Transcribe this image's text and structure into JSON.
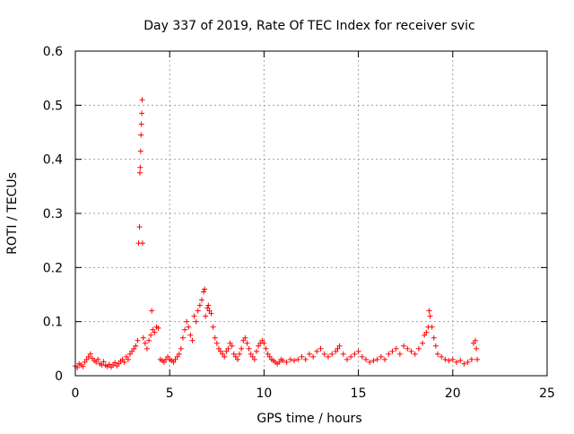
{
  "chart_data": {
    "type": "scatter",
    "title": "Day 337 of 2019, Rate Of TEC Index for receiver svic",
    "xlabel": "GPS time / hours",
    "ylabel": "ROTI / TECUs",
    "xlim": [
      0,
      25
    ],
    "ylim": [
      0,
      0.6
    ],
    "xticks": [
      "0",
      "5",
      "10",
      "15",
      "20",
      "25"
    ],
    "xtick_values": [
      0,
      5,
      10,
      15,
      20,
      25
    ],
    "yticks": [
      "0",
      "0.1",
      "0.2",
      "0.3",
      "0.4",
      "0.5",
      "0.6"
    ],
    "ytick_values": [
      0,
      0.1,
      0.2,
      0.3,
      0.4,
      0.5,
      0.6
    ],
    "grid": true,
    "marker": "+",
    "series": [
      {
        "name": "ROTI",
        "color": "#ff0000",
        "points": [
          [
            0.0,
            0.018
          ],
          [
            0.1,
            0.015
          ],
          [
            0.2,
            0.022
          ],
          [
            0.3,
            0.02
          ],
          [
            0.4,
            0.017
          ],
          [
            0.5,
            0.025
          ],
          [
            0.6,
            0.03
          ],
          [
            0.7,
            0.035
          ],
          [
            0.8,
            0.04
          ],
          [
            0.9,
            0.032
          ],
          [
            1.0,
            0.028
          ],
          [
            1.1,
            0.025
          ],
          [
            1.2,
            0.03
          ],
          [
            1.3,
            0.022
          ],
          [
            1.4,
            0.02
          ],
          [
            1.5,
            0.026
          ],
          [
            1.6,
            0.019
          ],
          [
            1.7,
            0.017
          ],
          [
            1.8,
            0.021
          ],
          [
            1.9,
            0.016
          ],
          [
            2.0,
            0.02
          ],
          [
            2.1,
            0.024
          ],
          [
            2.2,
            0.018
          ],
          [
            2.3,
            0.022
          ],
          [
            2.4,
            0.027
          ],
          [
            2.5,
            0.03
          ],
          [
            2.6,
            0.025
          ],
          [
            2.7,
            0.035
          ],
          [
            2.8,
            0.03
          ],
          [
            2.9,
            0.04
          ],
          [
            3.0,
            0.045
          ],
          [
            3.1,
            0.05
          ],
          [
            3.2,
            0.055
          ],
          [
            3.3,
            0.065
          ],
          [
            3.35,
            0.245
          ],
          [
            3.4,
            0.275
          ],
          [
            3.42,
            0.375
          ],
          [
            3.44,
            0.385
          ],
          [
            3.46,
            0.415
          ],
          [
            3.48,
            0.445
          ],
          [
            3.5,
            0.465
          ],
          [
            3.52,
            0.485
          ],
          [
            3.54,
            0.51
          ],
          [
            3.56,
            0.245
          ],
          [
            3.6,
            0.07
          ],
          [
            3.7,
            0.06
          ],
          [
            3.8,
            0.05
          ],
          [
            3.9,
            0.065
          ],
          [
            4.0,
            0.075
          ],
          [
            4.05,
            0.12
          ],
          [
            4.1,
            0.085
          ],
          [
            4.2,
            0.08
          ],
          [
            4.3,
            0.09
          ],
          [
            4.4,
            0.088
          ],
          [
            4.5,
            0.03
          ],
          [
            4.6,
            0.028
          ],
          [
            4.7,
            0.025
          ],
          [
            4.8,
            0.03
          ],
          [
            4.9,
            0.035
          ],
          [
            5.0,
            0.03
          ],
          [
            5.1,
            0.028
          ],
          [
            5.2,
            0.025
          ],
          [
            5.3,
            0.03
          ],
          [
            5.4,
            0.035
          ],
          [
            5.5,
            0.04
          ],
          [
            5.6,
            0.05
          ],
          [
            5.7,
            0.07
          ],
          [
            5.8,
            0.085
          ],
          [
            5.9,
            0.1
          ],
          [
            6.0,
            0.09
          ],
          [
            6.1,
            0.075
          ],
          [
            6.2,
            0.065
          ],
          [
            6.3,
            0.11
          ],
          [
            6.4,
            0.1
          ],
          [
            6.5,
            0.12
          ],
          [
            6.6,
            0.13
          ],
          [
            6.7,
            0.14
          ],
          [
            6.8,
            0.155
          ],
          [
            6.85,
            0.16
          ],
          [
            6.9,
            0.11
          ],
          [
            7.0,
            0.125
          ],
          [
            7.05,
            0.13
          ],
          [
            7.1,
            0.12
          ],
          [
            7.2,
            0.115
          ],
          [
            7.3,
            0.09
          ],
          [
            7.4,
            0.07
          ],
          [
            7.5,
            0.06
          ],
          [
            7.6,
            0.05
          ],
          [
            7.7,
            0.045
          ],
          [
            7.8,
            0.04
          ],
          [
            7.9,
            0.035
          ],
          [
            8.0,
            0.045
          ],
          [
            8.1,
            0.05
          ],
          [
            8.2,
            0.06
          ],
          [
            8.3,
            0.055
          ],
          [
            8.4,
            0.04
          ],
          [
            8.5,
            0.035
          ],
          [
            8.6,
            0.03
          ],
          [
            8.7,
            0.04
          ],
          [
            8.8,
            0.05
          ],
          [
            8.9,
            0.065
          ],
          [
            9.0,
            0.07
          ],
          [
            9.1,
            0.06
          ],
          [
            9.2,
            0.05
          ],
          [
            9.3,
            0.04
          ],
          [
            9.4,
            0.035
          ],
          [
            9.5,
            0.03
          ],
          [
            9.6,
            0.045
          ],
          [
            9.7,
            0.055
          ],
          [
            9.8,
            0.06
          ],
          [
            9.9,
            0.065
          ],
          [
            10.0,
            0.06
          ],
          [
            10.1,
            0.05
          ],
          [
            10.2,
            0.04
          ],
          [
            10.3,
            0.035
          ],
          [
            10.4,
            0.03
          ],
          [
            10.5,
            0.028
          ],
          [
            10.6,
            0.025
          ],
          [
            10.7,
            0.022
          ],
          [
            10.8,
            0.025
          ],
          [
            10.9,
            0.03
          ],
          [
            11.0,
            0.028
          ],
          [
            11.2,
            0.025
          ],
          [
            11.4,
            0.03
          ],
          [
            11.6,
            0.028
          ],
          [
            11.8,
            0.03
          ],
          [
            12.0,
            0.035
          ],
          [
            12.2,
            0.03
          ],
          [
            12.4,
            0.04
          ],
          [
            12.6,
            0.035
          ],
          [
            12.8,
            0.045
          ],
          [
            13.0,
            0.05
          ],
          [
            13.2,
            0.04
          ],
          [
            13.4,
            0.035
          ],
          [
            13.6,
            0.04
          ],
          [
            13.8,
            0.045
          ],
          [
            13.9,
            0.05
          ],
          [
            14.0,
            0.055
          ],
          [
            14.2,
            0.04
          ],
          [
            14.4,
            0.03
          ],
          [
            14.6,
            0.035
          ],
          [
            14.8,
            0.04
          ],
          [
            15.0,
            0.045
          ],
          [
            15.2,
            0.035
          ],
          [
            15.4,
            0.03
          ],
          [
            15.6,
            0.025
          ],
          [
            15.8,
            0.028
          ],
          [
            16.0,
            0.03
          ],
          [
            16.2,
            0.035
          ],
          [
            16.4,
            0.03
          ],
          [
            16.6,
            0.04
          ],
          [
            16.8,
            0.045
          ],
          [
            17.0,
            0.05
          ],
          [
            17.2,
            0.04
          ],
          [
            17.4,
            0.055
          ],
          [
            17.6,
            0.05
          ],
          [
            17.8,
            0.045
          ],
          [
            18.0,
            0.04
          ],
          [
            18.2,
            0.05
          ],
          [
            18.4,
            0.06
          ],
          [
            18.5,
            0.075
          ],
          [
            18.6,
            0.08
          ],
          [
            18.7,
            0.09
          ],
          [
            18.75,
            0.12
          ],
          [
            18.8,
            0.11
          ],
          [
            18.9,
            0.09
          ],
          [
            19.0,
            0.07
          ],
          [
            19.1,
            0.055
          ],
          [
            19.2,
            0.04
          ],
          [
            19.4,
            0.035
          ],
          [
            19.6,
            0.03
          ],
          [
            19.8,
            0.028
          ],
          [
            20.0,
            0.03
          ],
          [
            20.2,
            0.025
          ],
          [
            20.4,
            0.028
          ],
          [
            20.6,
            0.022
          ],
          [
            20.8,
            0.025
          ],
          [
            21.0,
            0.03
          ],
          [
            21.1,
            0.06
          ],
          [
            21.2,
            0.065
          ],
          [
            21.25,
            0.05
          ],
          [
            21.3,
            0.03
          ]
        ]
      }
    ]
  }
}
